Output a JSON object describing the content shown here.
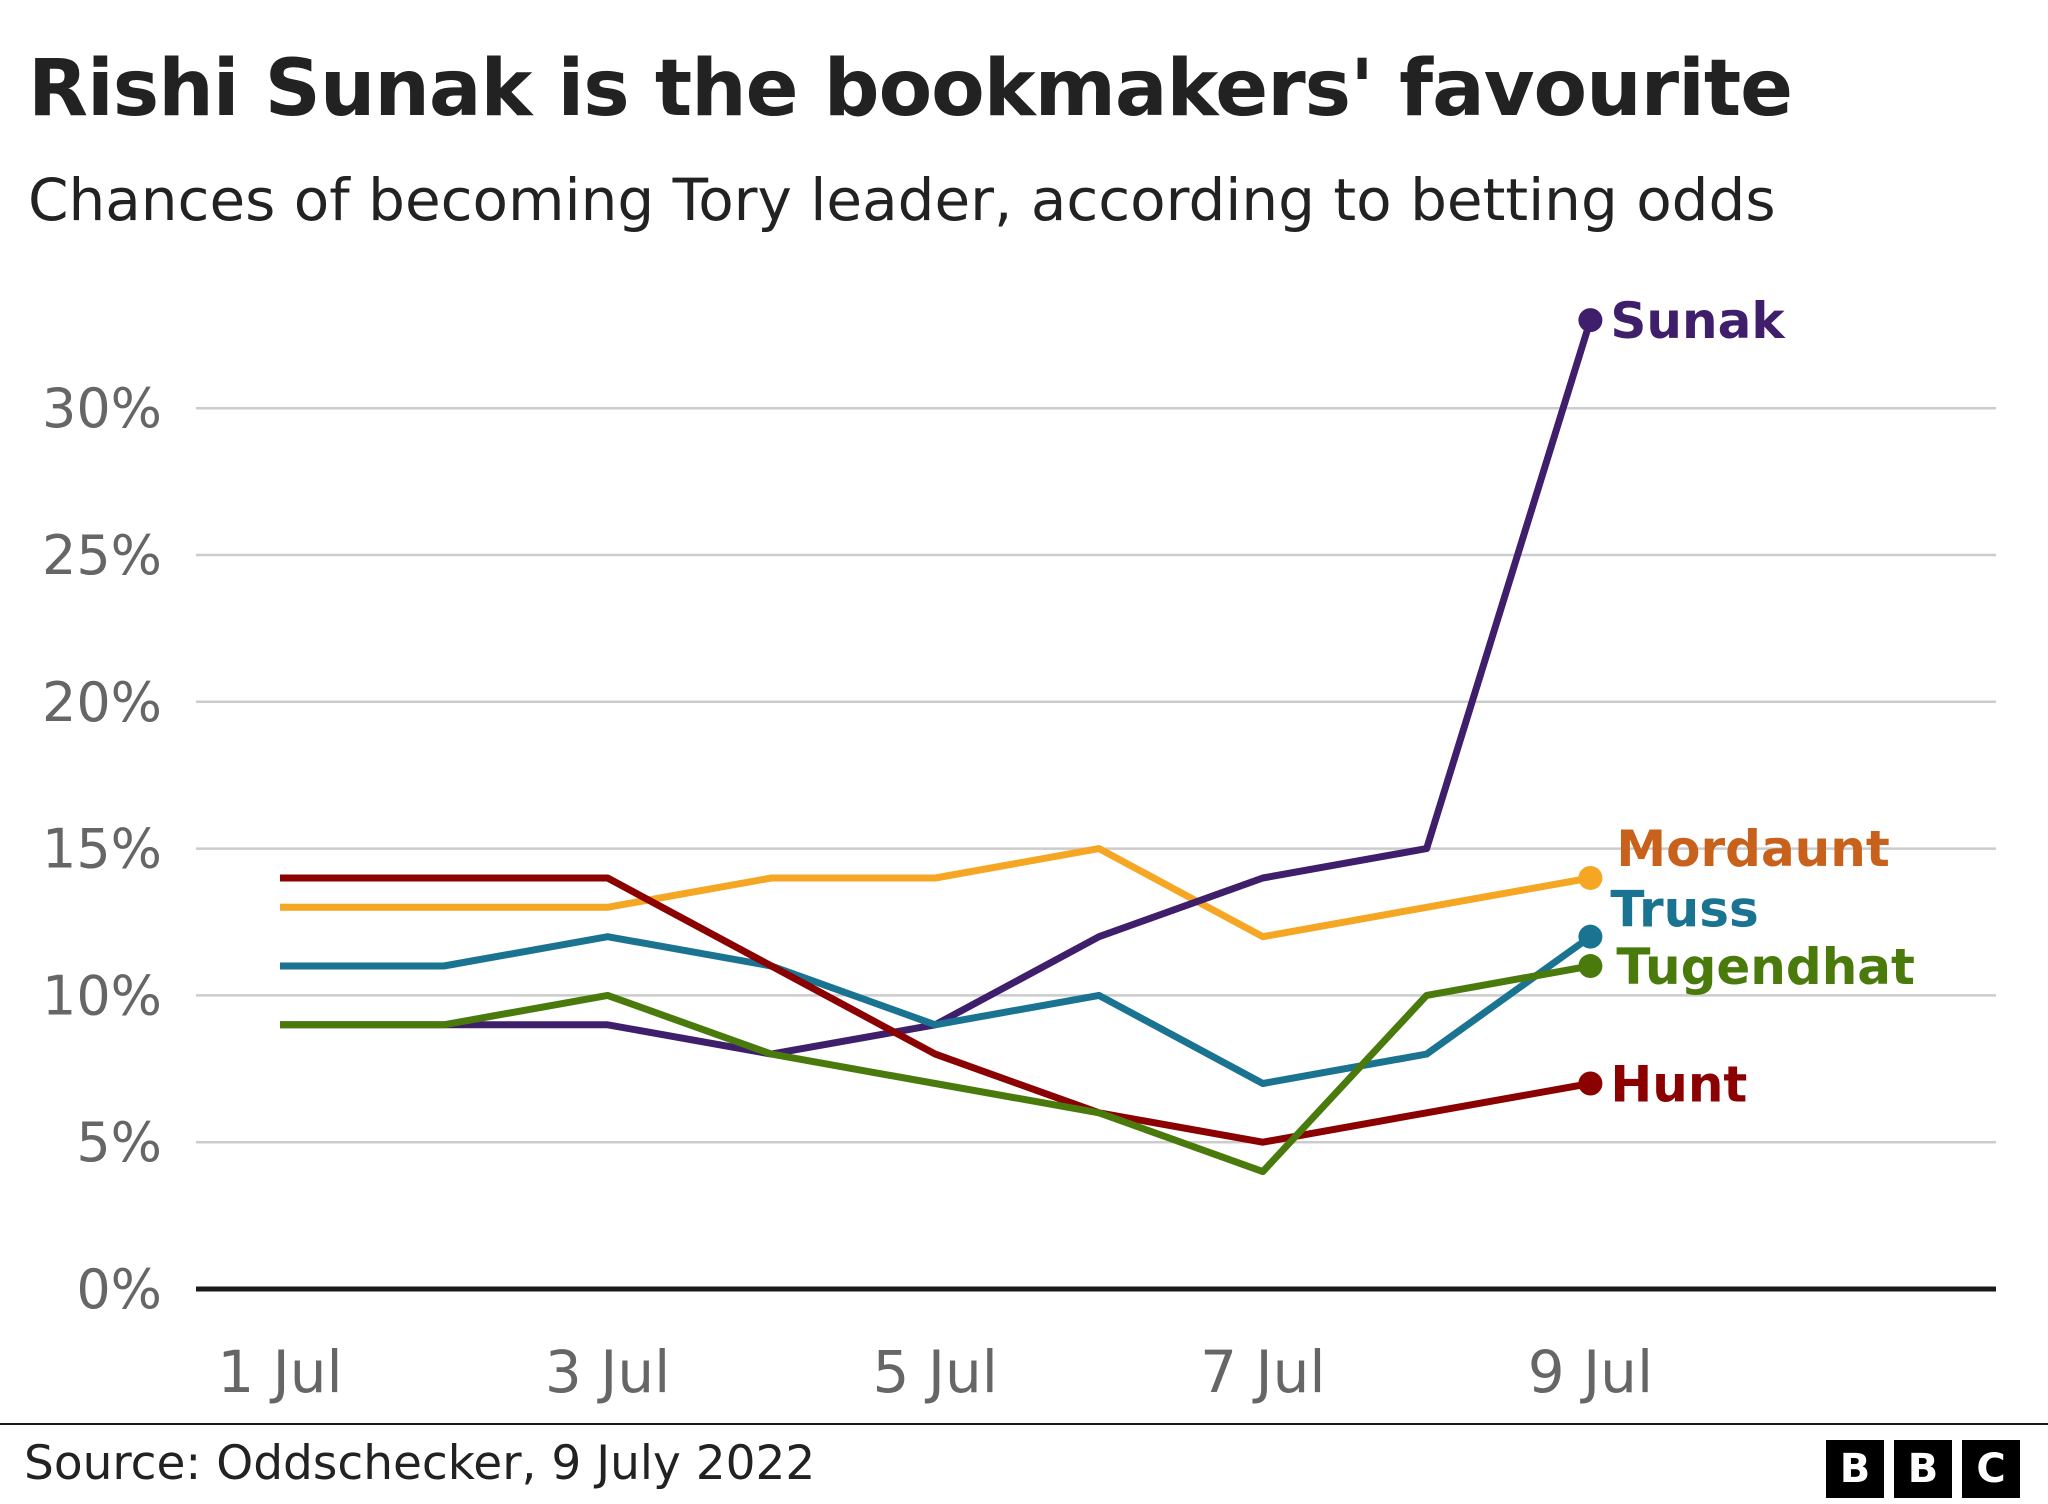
{
  "title": "Rishi Sunak is the bookmakers' favourite",
  "subtitle": "Chances of becoming Tory leader, according to betting odds",
  "source": "Source: Oddschecker, 9 July 2022",
  "logo": [
    "B",
    "B",
    "C"
  ],
  "chart_data": {
    "type": "line",
    "title": "Rishi Sunak is the bookmakers' favourite",
    "subtitle": "Chances of becoming Tory leader, according to betting odds",
    "xlabel": "",
    "ylabel": "",
    "x": [
      "1 Jul",
      "2 Jul",
      "3 Jul",
      "4 Jul",
      "5 Jul",
      "6 Jul",
      "7 Jul",
      "8 Jul",
      "9 Jul"
    ],
    "x_tick_labels": [
      "1 Jul",
      "3 Jul",
      "5 Jul",
      "7 Jul",
      "9 Jul"
    ],
    "y_tick_labels": [
      "0%",
      "5%",
      "10%",
      "15%",
      "20%",
      "25%",
      "30%"
    ],
    "ylim": [
      0,
      33
    ],
    "y_unit": "%",
    "grid": "horizontal",
    "legend": "direct labels at line ends",
    "series": [
      {
        "name": "Sunak",
        "color": "#3f1e6b",
        "values": [
          9,
          9,
          9,
          8,
          9,
          12,
          14,
          15,
          33
        ]
      },
      {
        "name": "Mordaunt",
        "color": "#f5a623",
        "label_color": "#c8611b",
        "values": [
          13,
          13,
          13,
          14,
          14,
          15,
          12,
          13,
          14
        ]
      },
      {
        "name": "Truss",
        "color": "#1a7491",
        "values": [
          11,
          11,
          12,
          11,
          9,
          10,
          7,
          8,
          12
        ]
      },
      {
        "name": "Tugendhat",
        "color": "#4a7a0c",
        "values": [
          9,
          9,
          10,
          8,
          7,
          6,
          4,
          10,
          11
        ]
      },
      {
        "name": "Hunt",
        "color": "#8b0000",
        "values": [
          14,
          14,
          14,
          11,
          8,
          6,
          5,
          6,
          7
        ]
      }
    ]
  }
}
